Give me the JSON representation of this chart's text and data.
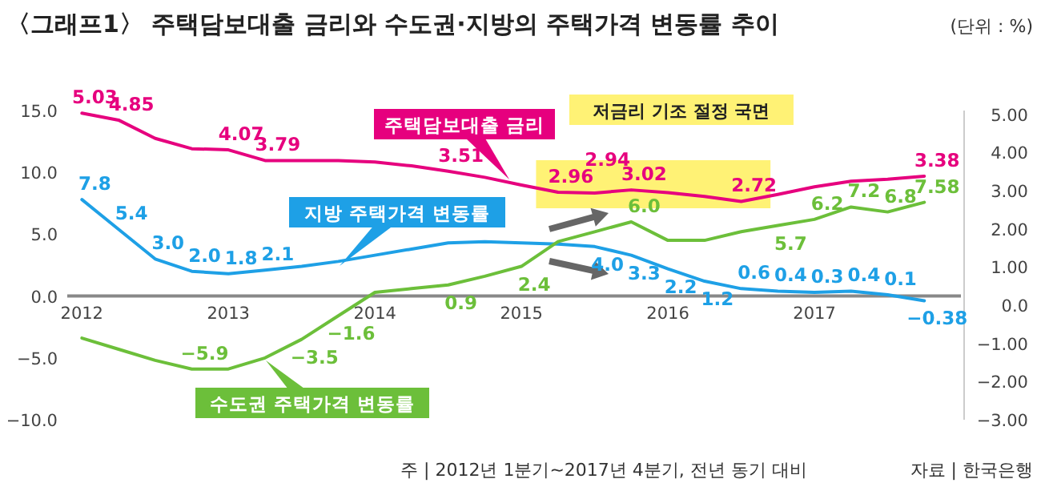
{
  "chart_data": {
    "type": "line",
    "title": "〈그래프1〉 주택담보대출 금리와 수도권·지방의 주택가격 변동률 추이",
    "annotations": [
      "(단위 : %)",
      "주 | 2012년 1분기~2017년 4분기, 전년 동기 대비",
      "자료 | 한국은행"
    ],
    "x": [
      2012,
      2012.25,
      2012.5,
      2012.75,
      2013,
      2013.25,
      2013.5,
      2013.75,
      2014,
      2014.25,
      2014.5,
      2014.75,
      2015,
      2015.25,
      2015.5,
      2015.75,
      2016,
      2016.25,
      2016.5,
      2016.75,
      2017,
      2017.25,
      2017.5,
      2017.75
    ],
    "xlim": [
      2011.9,
      2018.0
    ],
    "xticks": [
      2012,
      2013,
      2014,
      2015,
      2016,
      2017
    ],
    "ylim": [
      -10,
      15
    ],
    "yticks": [
      {
        "value": -10,
        "label": "−10.0"
      },
      {
        "value": -5,
        "label": "−5.0"
      },
      {
        "value": 0,
        "label": "0.0"
      },
      {
        "value": 5,
        "label": "5.0"
      },
      {
        "value": 10,
        "label": "10.0"
      },
      {
        "value": 15,
        "label": "15.0"
      }
    ],
    "y2lim": [
      -3,
      5.1
    ],
    "y2ticks": [
      {
        "value": -3,
        "label": "−3.00"
      },
      {
        "value": -2,
        "label": "−2.00"
      },
      {
        "value": -1,
        "label": "−1.00"
      },
      {
        "value": 0,
        "label": "0.0"
      },
      {
        "value": 1,
        "label": "1.00"
      },
      {
        "value": 2,
        "label": "2.00"
      },
      {
        "value": 3,
        "label": "3.00"
      },
      {
        "value": 4,
        "label": "4.00"
      },
      {
        "value": 5,
        "label": "5.00"
      }
    ],
    "grid": false,
    "legend": false,
    "marker": "none",
    "line_style": "solid",
    "bands": [
      {
        "axis": "x",
        "from": 2015.1,
        "to": 2016.7,
        "label": "저금리 기조 절정 국면",
        "color": "#fff275"
      }
    ],
    "series": [
      {
        "name": "주택담보대출 금리",
        "color": "#e6007e",
        "axis": "y2",
        "values": [
          5.03,
          4.85,
          4.37,
          4.1,
          4.07,
          3.79,
          3.79,
          3.79,
          3.75,
          3.65,
          3.51,
          3.35,
          3.15,
          2.96,
          2.94,
          3.02,
          2.95,
          2.85,
          2.72,
          2.9,
          3.1,
          3.25,
          3.3,
          3.38
        ],
        "value_labels": [
          "5.03",
          "4.85",
          null,
          null,
          "4.07",
          "3.79",
          null,
          null,
          null,
          null,
          "3.51",
          null,
          null,
          "2.96",
          "2.94",
          "3.02",
          null,
          null,
          "2.72",
          null,
          null,
          null,
          null,
          "3.38"
        ]
      },
      {
        "name": "지방 주택가격 변동률",
        "color": "#1ea0e6",
        "values": [
          7.8,
          5.4,
          3.0,
          2.0,
          1.8,
          2.1,
          2.4,
          2.8,
          3.3,
          3.8,
          4.3,
          4.4,
          4.3,
          4.2,
          4.0,
          3.3,
          2.2,
          1.2,
          0.6,
          0.4,
          0.3,
          0.4,
          0.1,
          -0.38
        ],
        "value_labels": [
          "7.8",
          "5.4",
          "3.0",
          "2.0",
          "1.8",
          "2.1",
          null,
          null,
          null,
          null,
          null,
          null,
          null,
          null,
          "4.0",
          "3.3",
          "2.2",
          "1.2",
          "0.6",
          "0.4",
          "0.3",
          "0.4",
          "0.1",
          "−0.38"
        ]
      },
      {
        "name": "수도권 주택가격 변동률",
        "color": "#6cbf3a",
        "values": [
          -3.4,
          -4.3,
          -5.2,
          -5.9,
          -5.9,
          -5.0,
          -3.5,
          -1.6,
          0.3,
          0.6,
          0.9,
          1.6,
          2.4,
          4.4,
          5.2,
          6.0,
          4.5,
          4.5,
          5.2,
          5.7,
          6.2,
          7.2,
          6.8,
          7.58
        ],
        "value_labels": [
          null,
          null,
          null,
          "−5.9",
          null,
          null,
          "−3.5",
          "−1.6",
          null,
          null,
          "0.9",
          null,
          "2.4",
          null,
          null,
          "6.0",
          null,
          null,
          null,
          "5.7",
          "6.2",
          "7.2",
          "6.8",
          "7.58"
        ]
      }
    ]
  }
}
